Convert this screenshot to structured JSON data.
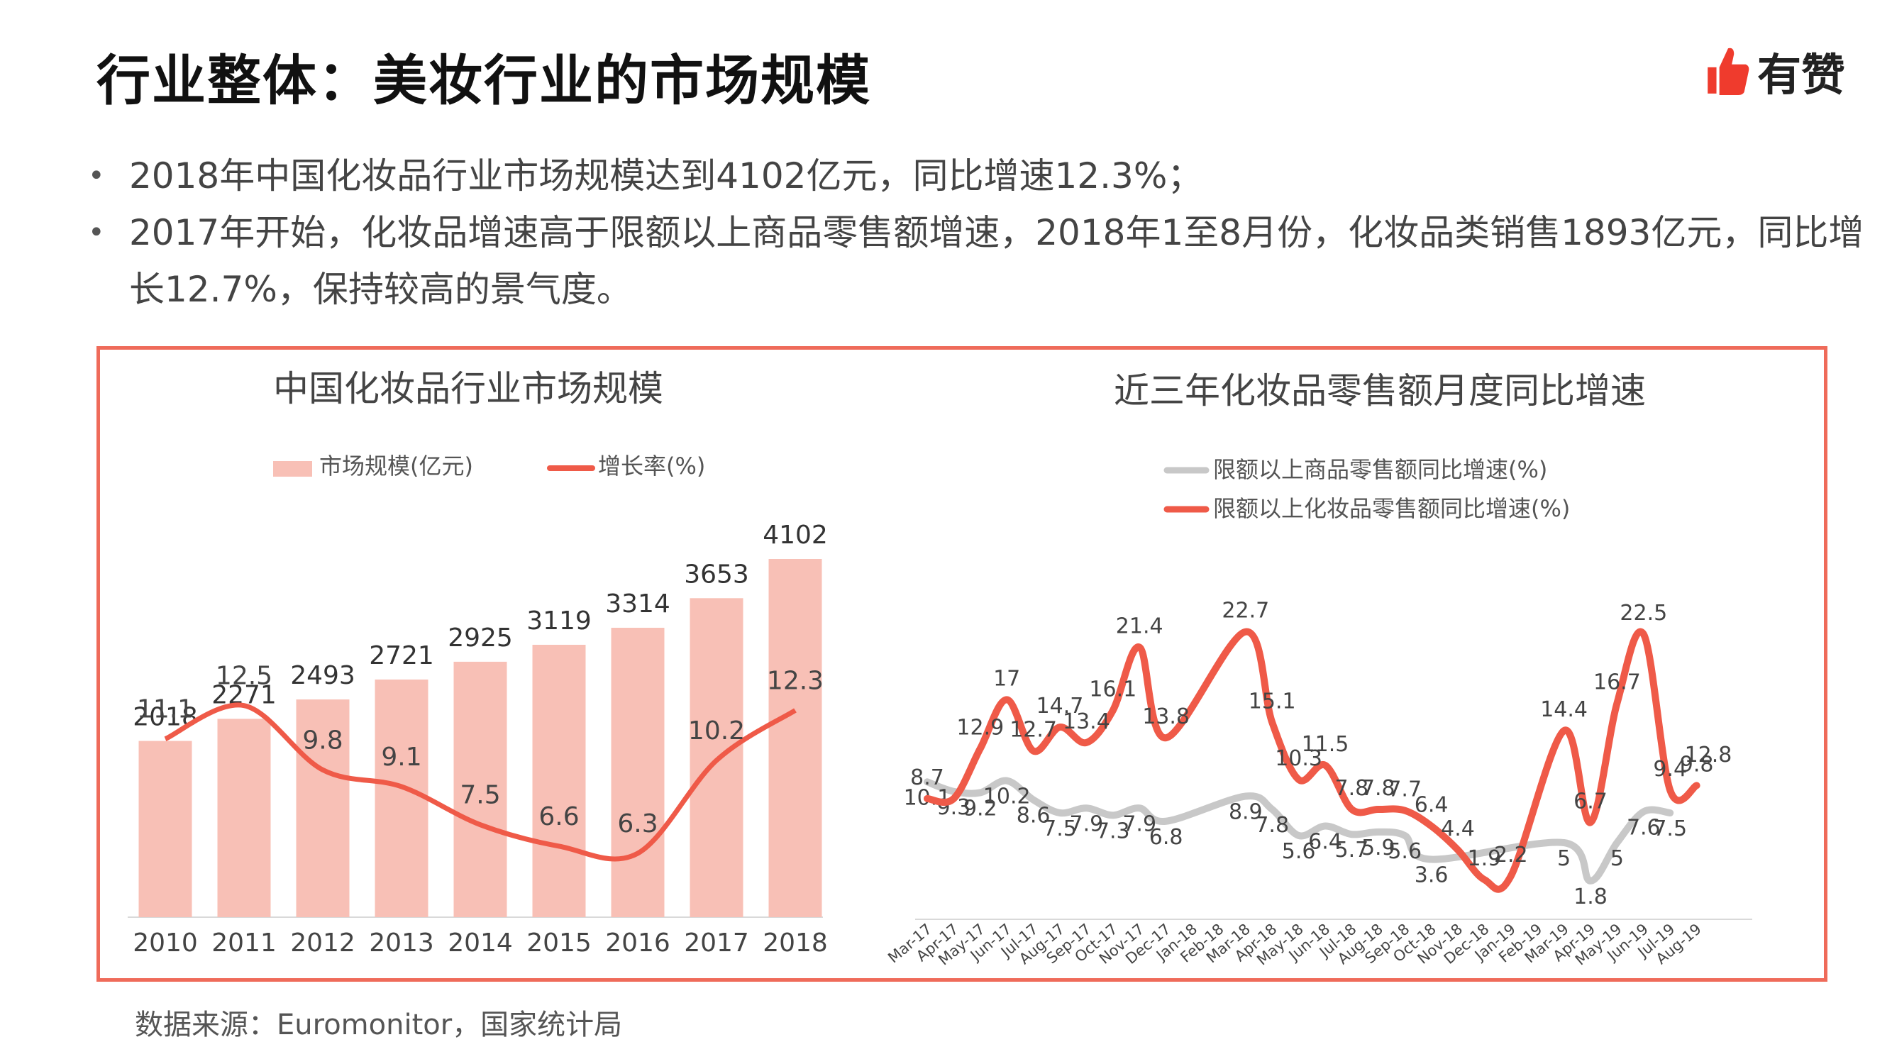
{
  "page": {
    "title": "行业整体：美妆行业的市场规模",
    "logo_text": "有赞",
    "bullets": [
      "2018年中国化妆品行业市场规模达到4102亿元，同比增速12.3%；",
      "2017年开始，化妆品增速高于限额以上商品零售额增速，2018年1至8月份，化妆品类销售1893亿元，同比增长12.7%，保持较高的景气度。"
    ],
    "source": "数据来源：Euromonitor，国家统计局",
    "colors": {
      "accent": "#ef5a48",
      "bar": "#f8c0b6",
      "gray_line": "#c8c8c8",
      "frame": "#ef6b5a"
    }
  },
  "chart_data": [
    {
      "type": "bar",
      "title": "中国化妆品行业市场规模",
      "categories": [
        "2010",
        "2011",
        "2012",
        "2013",
        "2014",
        "2015",
        "2016",
        "2017",
        "2018"
      ],
      "series": [
        {
          "name": "市场规模(亿元)",
          "type": "bar",
          "values": [
            2018,
            2271,
            2493,
            2721,
            2925,
            3119,
            3314,
            3653,
            4102
          ]
        },
        {
          "name": "增长率(%)",
          "type": "line",
          "values": [
            11.1,
            12.5,
            9.8,
            9.1,
            7.5,
            6.6,
            6.3,
            10.2,
            12.3
          ]
        }
      ],
      "legend_position": "top"
    },
    {
      "type": "line",
      "title": "近三年化妆品零售额月度同比增速",
      "categories": [
        "Mar-17",
        "Apr-17",
        "May-17",
        "Jun-17",
        "Jul-17",
        "Aug-17",
        "Sep-17",
        "Oct-17",
        "Nov-17",
        "Dec-17",
        "Jan-18",
        "Feb-18",
        "Mar-18",
        "Apr-18",
        "May-18",
        "Jun-18",
        "Jul-18",
        "Aug-18",
        "Sep-18",
        "Oct-18",
        "Nov-18",
        "Dec-18",
        "Jan-19",
        "Feb-19",
        "Mar-19",
        "Apr-19",
        "May-19",
        "Jun-19",
        "Jul-19",
        "Aug-19"
      ],
      "series": [
        {
          "name": "限额以上商品零售额同比增速(%)",
          "values": [
            10.1,
            9.3,
            9.2,
            10.2,
            8.6,
            7.5,
            7.9,
            7.3,
            7.9,
            6.8,
            null,
            null,
            8.9,
            7.8,
            5.6,
            6.4,
            5.7,
            5.9,
            5.6,
            3.6,
            null,
            null,
            null,
            null,
            5,
            1.8,
            5,
            7.6,
            7.5,
            null
          ],
          "labels": [
            "10.1",
            "9.3",
            "9.2",
            "10.2",
            "8.6",
            "7.5",
            "7.9",
            "7.3",
            "7.9",
            "6.8",
            "",
            "",
            "8.9",
            "7.8",
            "5.6",
            "6.4",
            "5.7",
            "5.9",
            "5.6",
            "3.6",
            "",
            "",
            "",
            "",
            "5",
            "1.8",
            "5",
            "7.6",
            "7.5",
            ""
          ]
        },
        {
          "name": "限额以上化妆品零售额同比增速(%)",
          "values": [
            8.7,
            8.7,
            12.9,
            17,
            12.7,
            14.7,
            13.4,
            16.1,
            21.4,
            13.8,
            null,
            null,
            22.7,
            15.1,
            10.3,
            11.5,
            7.8,
            7.8,
            7.7,
            6.4,
            4.4,
            1.9,
            2.2,
            null,
            14.4,
            6.7,
            16.7,
            22.5,
            9.4,
            9.8
          ],
          "extra_label": "12.8",
          "labels": [
            "8.7",
            "",
            "12.9",
            "17",
            "12.7",
            "14.7",
            "13.4",
            "16.1",
            "21.4",
            "13.8",
            "",
            "",
            "22.7",
            "15.1",
            "10.3",
            "11.5",
            "7.8",
            "7.8",
            "7.7",
            "6.4",
            "4.4",
            "1.9",
            "2.2",
            "",
            "14.4",
            "6.7",
            "16.7",
            "22.5",
            "9.4",
            "9.8"
          ]
        }
      ],
      "legend_position": "top"
    }
  ]
}
